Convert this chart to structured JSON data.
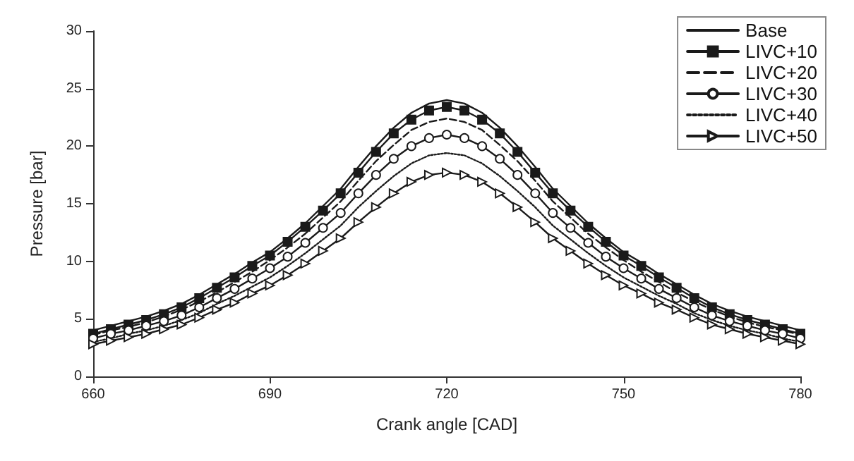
{
  "chart_data": {
    "type": "line",
    "xlabel": "Crank angle [CAD]",
    "ylabel": "Pressure [bar]",
    "x": [
      660,
      663,
      666,
      669,
      672,
      675,
      678,
      681,
      684,
      687,
      690,
      693,
      696,
      699,
      702,
      705,
      708,
      711,
      714,
      717,
      720,
      723,
      726,
      729,
      732,
      735,
      738,
      741,
      744,
      747,
      750,
      753,
      756,
      759,
      762,
      765,
      768,
      771,
      774,
      777,
      780
    ],
    "xlim": [
      660,
      780
    ],
    "xticks": [
      660,
      690,
      720,
      750,
      780
    ],
    "ylim": [
      0,
      30
    ],
    "yticks": [
      0,
      5,
      10,
      15,
      20,
      25,
      30
    ],
    "grid": false,
    "legend": "top right",
    "series": [
      {
        "name": "Base",
        "color": "#1a1a1a",
        "marker": "none",
        "line_style": "solid",
        "values": [
          4.0,
          4.4,
          4.8,
          5.2,
          5.7,
          6.3,
          7.1,
          8.0,
          8.9,
          9.9,
          10.8,
          12.0,
          13.3,
          14.8,
          16.3,
          18.2,
          20.0,
          21.6,
          22.9,
          23.7,
          24.0,
          23.7,
          22.9,
          21.6,
          20.0,
          18.2,
          16.3,
          14.8,
          13.3,
          12.0,
          10.8,
          9.9,
          8.9,
          8.0,
          7.1,
          6.3,
          5.7,
          5.2,
          4.8,
          4.4,
          4.0
        ]
      },
      {
        "name": "LIVC+10",
        "color": "#1a1a1a",
        "marker": "square",
        "line_style": "solid",
        "values": [
          3.7,
          4.1,
          4.5,
          4.9,
          5.4,
          6.0,
          6.8,
          7.7,
          8.6,
          9.6,
          10.5,
          11.7,
          13.0,
          14.4,
          15.9,
          17.7,
          19.5,
          21.1,
          22.3,
          23.1,
          23.4,
          23.1,
          22.3,
          21.1,
          19.5,
          17.7,
          15.9,
          14.4,
          13.0,
          11.7,
          10.5,
          9.6,
          8.6,
          7.7,
          6.8,
          6.0,
          5.4,
          4.9,
          4.5,
          4.1,
          3.7
        ]
      },
      {
        "name": "LIVC+20",
        "color": "#1a1a1a",
        "marker": "none",
        "line_style": "dashed",
        "values": [
          3.6,
          4.0,
          4.3,
          4.7,
          5.2,
          5.8,
          6.5,
          7.3,
          8.2,
          9.1,
          10.1,
          11.2,
          12.4,
          13.8,
          15.2,
          17.0,
          18.7,
          20.1,
          21.4,
          22.1,
          22.4,
          22.1,
          21.4,
          20.1,
          18.7,
          17.0,
          15.2,
          13.8,
          12.4,
          11.2,
          10.1,
          9.1,
          8.2,
          7.3,
          6.5,
          5.8,
          5.2,
          4.7,
          4.3,
          4.0,
          3.6
        ]
      },
      {
        "name": "LIVC+30",
        "color": "#1a1a1a",
        "marker": "circle",
        "line_style": "solid",
        "values": [
          3.3,
          3.7,
          4.0,
          4.4,
          4.8,
          5.3,
          6.0,
          6.8,
          7.6,
          8.5,
          9.4,
          10.4,
          11.6,
          12.9,
          14.2,
          15.9,
          17.5,
          18.9,
          20.0,
          20.7,
          21.0,
          20.7,
          20.0,
          18.9,
          17.5,
          15.9,
          14.2,
          12.9,
          11.6,
          10.4,
          9.4,
          8.5,
          7.6,
          6.8,
          6.0,
          5.3,
          4.8,
          4.4,
          4.0,
          3.7,
          3.3
        ]
      },
      {
        "name": "LIVC+40",
        "color": "#1a1a1a",
        "marker": "none",
        "line_style": "dotted",
        "values": [
          3.0,
          3.3,
          3.7,
          4.0,
          4.4,
          4.9,
          5.5,
          6.3,
          7.0,
          7.8,
          8.6,
          9.6,
          10.7,
          11.9,
          13.1,
          14.7,
          16.1,
          17.4,
          18.5,
          19.2,
          19.4,
          19.2,
          18.5,
          17.4,
          16.1,
          14.7,
          13.1,
          11.9,
          10.7,
          9.6,
          8.6,
          7.8,
          7.0,
          6.3,
          5.5,
          4.9,
          4.4,
          4.0,
          3.7,
          3.3,
          3.0
        ]
      },
      {
        "name": "LIVC+50",
        "color": "#1a1a1a",
        "marker": "triangle",
        "line_style": "solid",
        "values": [
          2.8,
          3.1,
          3.4,
          3.7,
          4.1,
          4.5,
          5.1,
          5.8,
          6.4,
          7.2,
          7.9,
          8.8,
          9.8,
          10.9,
          12.0,
          13.4,
          14.7,
          15.9,
          16.9,
          17.5,
          17.7,
          17.5,
          16.9,
          15.9,
          14.7,
          13.4,
          12.0,
          10.9,
          9.8,
          8.8,
          7.9,
          7.2,
          6.4,
          5.8,
          5.1,
          4.5,
          4.1,
          3.7,
          3.4,
          3.1,
          2.8
        ]
      }
    ]
  }
}
